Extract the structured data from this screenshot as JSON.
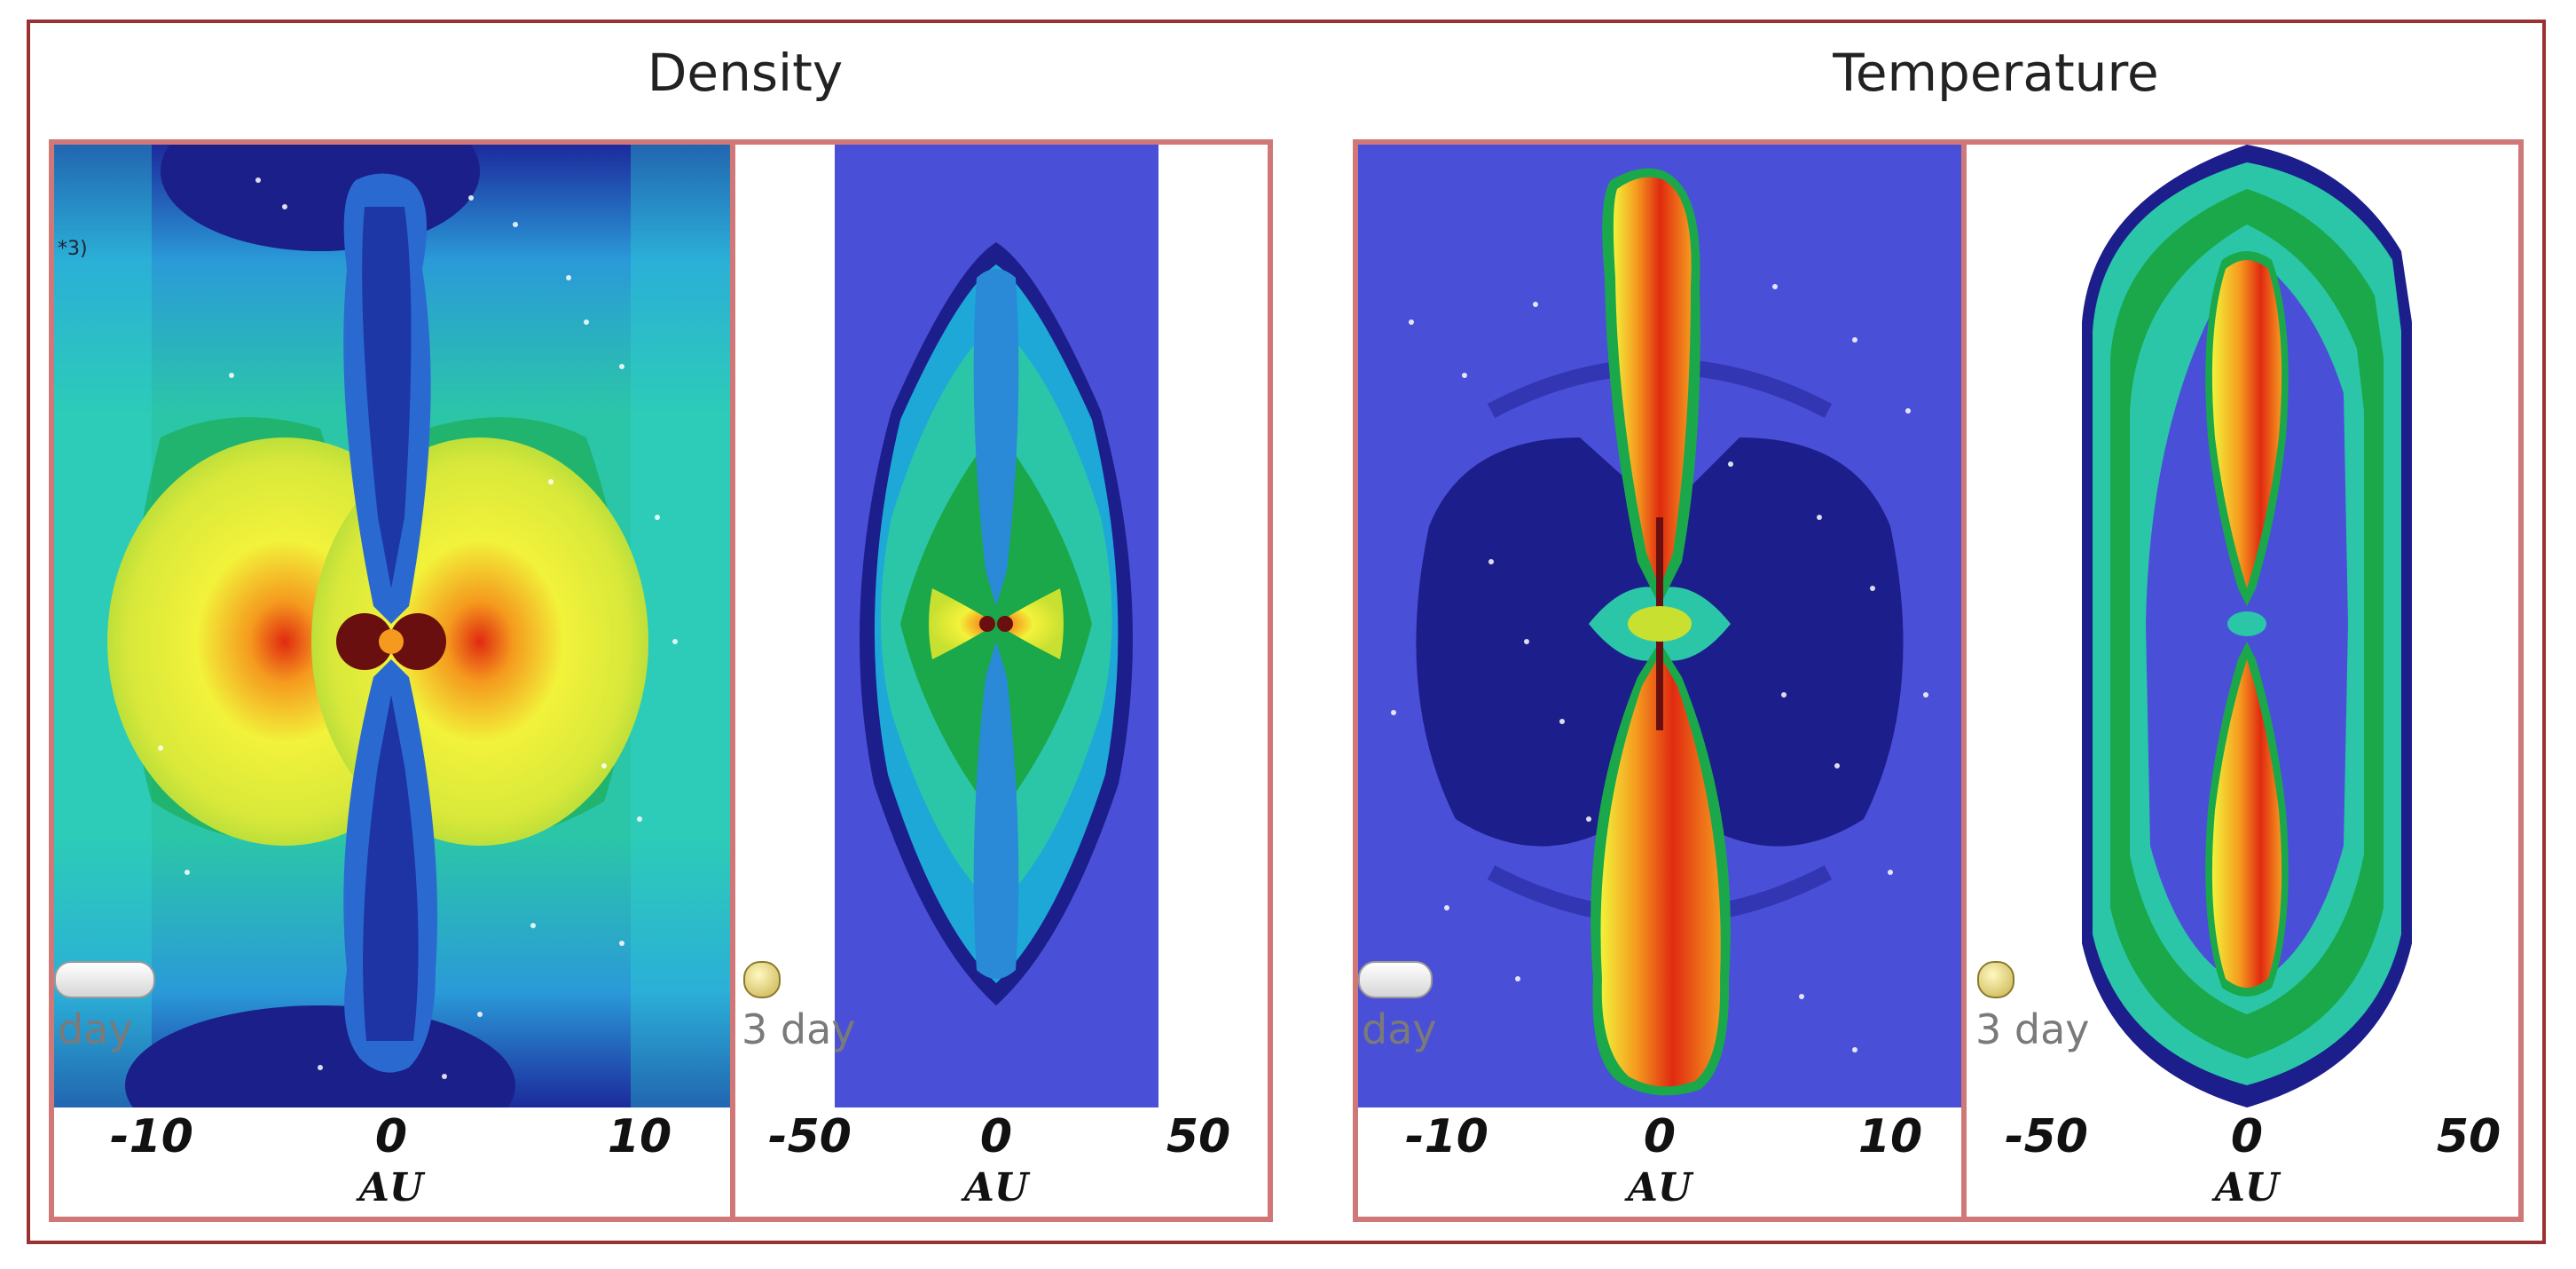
{
  "titles": {
    "density": "Density",
    "temperature": "Temperature"
  },
  "panels": {
    "density_small": {
      "ticks": [
        "-10",
        "0",
        "10"
      ],
      "unit": "AU",
      "time_label": "day",
      "corner_label": "*3)"
    },
    "density_large": {
      "ticks": [
        "-50",
        "0",
        "50"
      ],
      "unit": "AU",
      "time_label": "3 day"
    },
    "temperature_small": {
      "ticks": [
        "-10",
        "0",
        "10"
      ],
      "unit": "AU",
      "time_label": "day"
    },
    "temperature_large": {
      "ticks": [
        "-50",
        "0",
        "50"
      ],
      "unit": "AU",
      "time_label": "3 day"
    }
  },
  "colors": {
    "frame": "#9b3232",
    "panel_border": "#d07878",
    "navy": "#1c1e8c",
    "blue_bg": "#4a4fd8",
    "cyan": "#1ee0e8",
    "teal": "#2bc6a8",
    "green": "#1aa84a",
    "yellow": "#f2f23a",
    "orange": "#f59a1e",
    "red": "#e02a10",
    "dark_red": "#6a0f0f"
  }
}
